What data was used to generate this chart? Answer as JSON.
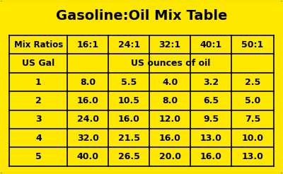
{
  "title": "Gasoline:Oil Mix Table",
  "background_color": "#FFE800",
  "border_color": "#1a1a1a",
  "text_color": "#000000",
  "col_headers": [
    "Mix Ratios",
    "16:1",
    "24:1",
    "32:1",
    "40:1",
    "50:1"
  ],
  "sub_header_left": "US Gal",
  "sub_header_right": "US ounces of oil",
  "rows": [
    [
      1,
      8.0,
      5.5,
      4.0,
      3.2,
      2.5
    ],
    [
      2,
      16.0,
      10.5,
      8.0,
      6.5,
      5.0
    ],
    [
      3,
      24.0,
      16.0,
      12.0,
      9.5,
      7.5
    ],
    [
      4,
      32.0,
      21.5,
      16.0,
      13.0,
      10.0
    ],
    [
      5,
      40.0,
      26.5,
      20.0,
      16.0,
      13.0
    ]
  ],
  "figsize": [
    4.0,
    2.46
  ],
  "dpi": 100
}
